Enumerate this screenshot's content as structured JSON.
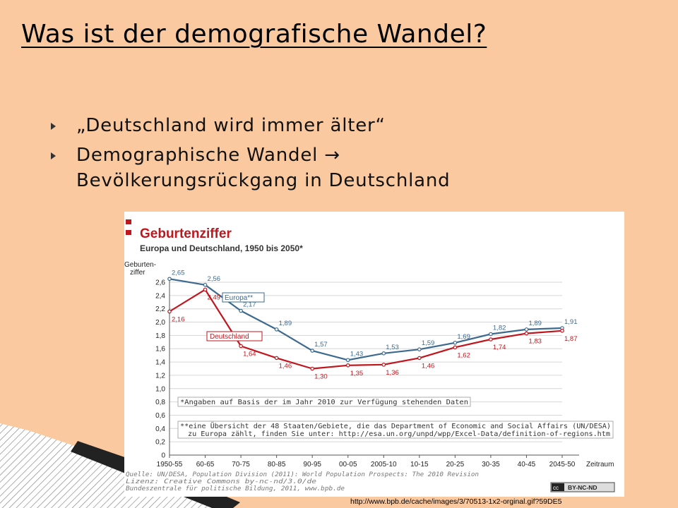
{
  "slide": {
    "title": "Was ist der demografische Wandel?",
    "bullets": [
      {
        "text": "„Deutschland wird immer älter“",
        "text2": ""
      },
      {
        "text": "Demographische Wandel →",
        "text2": "Bevölkerungsrückgang in Deutschland"
      }
    ],
    "source_url": "http://www.bpb.de/cache/images/3/70513-1x2-orginal.gif?59DE5",
    "colors": {
      "background": "#FBC9A0",
      "europe": "#3D6A8F",
      "germany": "#C0161E",
      "chart_title": "#C0161E"
    }
  },
  "chart_data": {
    "type": "line",
    "title": "Geburtenziffer",
    "subtitle": "Europa und Deutschland, 1950 bis 2050*",
    "ylabel": "Geburten-\nziffer",
    "xlabel": "Zeitraum",
    "ylim": [
      0,
      2.6
    ],
    "yticks": [
      "0",
      "0,2",
      "0,4",
      "0,6",
      "0,8",
      "1,0",
      "1,2",
      "1,4",
      "1,6",
      "1,8",
      "2,0",
      "2,2",
      "2,4",
      "2,6"
    ],
    "categories": [
      "1950-55",
      "60-65",
      "70-75",
      "80-85",
      "90-95",
      "00-05",
      "2005-10",
      "10-15",
      "20-25",
      "30-35",
      "40-45",
      "2045-50"
    ],
    "series": [
      {
        "name": "Europa**",
        "values": [
          2.65,
          2.56,
          2.17,
          1.89,
          1.57,
          1.43,
          1.53,
          1.59,
          1.69,
          1.82,
          1.89,
          1.91
        ],
        "labels": [
          "2,65",
          "2,56",
          "2,17",
          "1,89",
          "1,57",
          "1,43",
          "1,53",
          "1,59",
          "1,69",
          "1,82",
          "1,89",
          "1,91"
        ]
      },
      {
        "name": "Deutschland",
        "values": [
          2.16,
          2.49,
          1.64,
          1.46,
          1.3,
          1.35,
          1.36,
          1.46,
          1.62,
          1.74,
          1.83,
          1.87
        ],
        "labels": [
          "2,16",
          "2,49",
          "1,64",
          "1,46",
          "1,30",
          "1,35",
          "1,36",
          "1,46",
          "1,62",
          "1,74",
          "1,83",
          "1,87"
        ]
      }
    ],
    "notes": [
      "*Angaben auf Basis der im Jahr 2010 zur Verfügung stehenden Daten",
      "**eine Übersicht der 48 Staaten/Gebiete, die das Department of Economic and Social Affairs (UN/DESA)",
      "zu Europa zählt, finden Sie unter: http://esa.un.org/unpd/wpp/Excel-Data/definition-of-regions.htm"
    ],
    "source": [
      "Quelle: UN/DESA, Population Division (2011): World Population Prospects: The 2010 Revision",
      "Lizenz: Creative Commons  by-nc-nd/3.0/de",
      "Bundeszentrale für politische Bildung, 2011, www.bpb.de"
    ],
    "license_badge": "BY-NC-ND",
    "grid": true
  }
}
